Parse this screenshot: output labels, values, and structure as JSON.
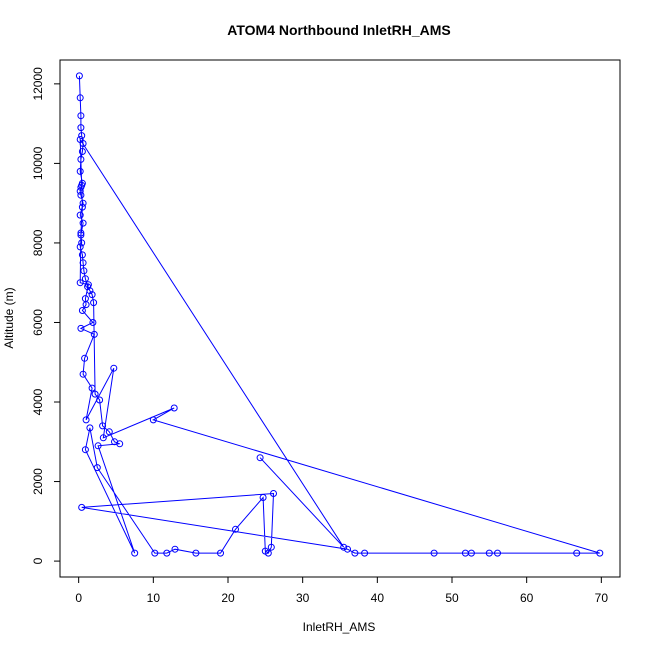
{
  "chart_data": {
    "type": "scatter",
    "title": "ATOM4 Northbound InletRH_AMS",
    "xlabel": "InletRH_AMS",
    "ylabel": "Altitude (m)",
    "xlim": [
      -2.5,
      72.5
    ],
    "ylim": [
      -400,
      12600
    ],
    "xticks": [
      "0",
      "10",
      "20",
      "30",
      "40",
      "50",
      "60",
      "70"
    ],
    "yticks": [
      "0",
      "2000",
      "4000",
      "6000",
      "8000",
      "10000",
      "12000"
    ],
    "color": "#0000ff",
    "grid": false,
    "legend": "none",
    "series": [
      {
        "x": [
          0.1,
          0.2,
          0.3,
          0.3,
          0.4,
          0.6,
          0.5,
          0.3,
          0.2,
          0.5,
          0.3,
          0.2,
          0.3,
          0.6,
          0.2,
          0.6,
          0.3,
          0.4,
          0.2,
          0.5,
          0.6,
          0.7,
          0.9,
          1.2,
          1.5,
          1.8,
          2.0,
          2.2,
          2.8,
          3.2,
          4.1,
          4.8,
          5.5,
          2.6,
          7.5,
          0.9,
          1.5,
          2.5,
          10.2,
          11.8,
          12.9,
          15.7,
          19.0,
          21.0,
          24.7,
          25.0,
          25.4,
          25.8,
          26.1,
          0.4,
          36.0,
          37.0,
          38.3,
          47.6,
          51.8,
          52.6,
          55.0,
          56.1,
          66.7,
          69.8,
          10.0,
          12.8,
          3.3,
          4.7,
          1.0,
          1.8,
          0.6,
          0.8,
          2.1,
          0.3,
          1.9,
          0.5,
          1.0,
          0.9,
          1.3,
          0.2,
          0.3,
          0.5,
          0.4,
          0.2,
          35.5,
          24.3
        ],
        "y": [
          12200,
          11650,
          11200,
          10900,
          10700,
          10500,
          10300,
          10100,
          9800,
          9500,
          9400,
          9300,
          9200,
          9000,
          8700,
          8500,
          8200,
          8000,
          7900,
          7700,
          7500,
          7300,
          7100,
          6900,
          6800,
          6700,
          6500,
          4200,
          4050,
          3400,
          3250,
          3000,
          2950,
          2900,
          200,
          2800,
          3350,
          2350,
          200,
          200,
          300,
          200,
          200,
          800,
          1600,
          250,
          200,
          350,
          1700,
          1350,
          300,
          200,
          200,
          200,
          200,
          200,
          200,
          200,
          200,
          200,
          3550,
          3850,
          3100,
          4850,
          3550,
          4350,
          4700,
          5100,
          5700,
          5850,
          6000,
          6300,
          6450,
          6600,
          6950,
          7000,
          8250,
          8900,
          9450,
          10600,
          350,
          2600
        ]
      }
    ]
  }
}
